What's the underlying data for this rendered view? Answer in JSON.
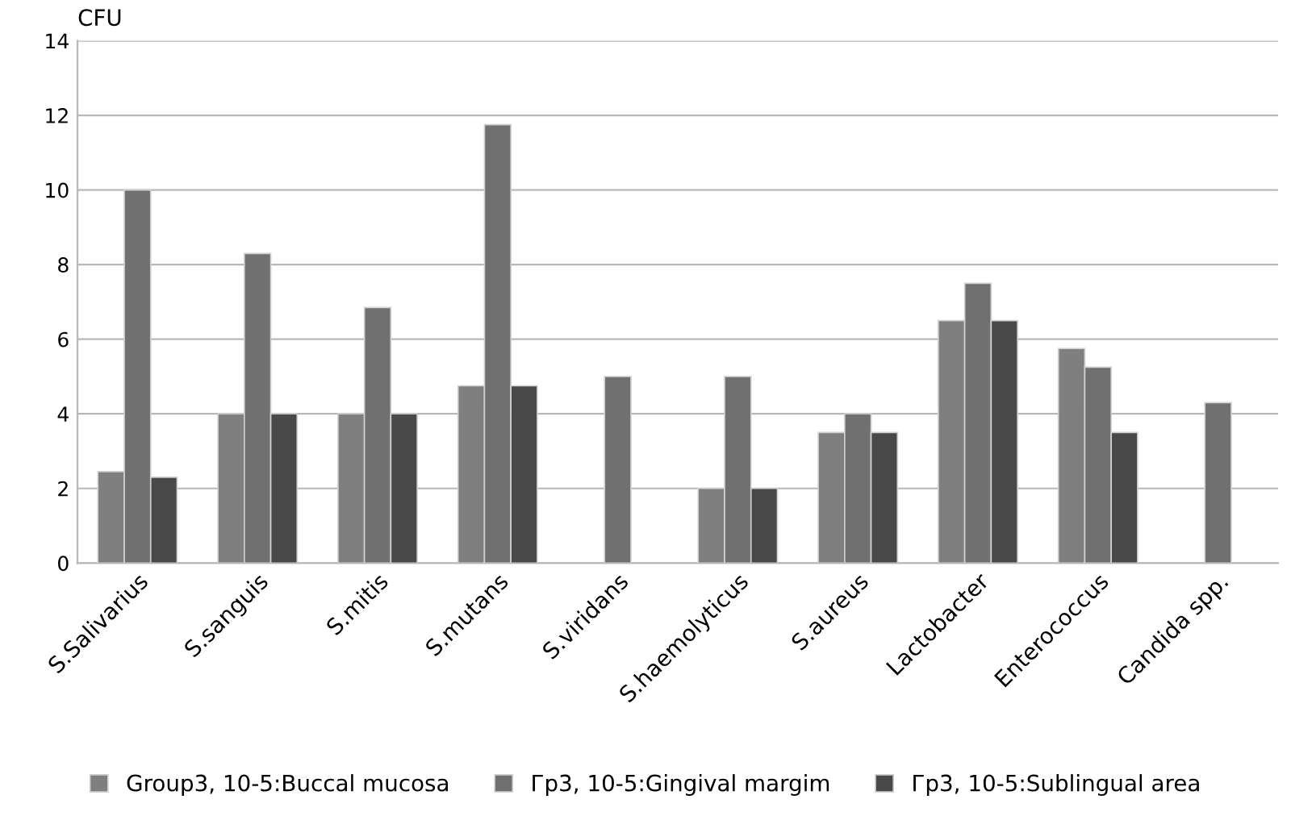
{
  "chart_data": {
    "type": "bar",
    "ylabel": "CFU",
    "categories": [
      "S.Salivarius",
      "S.sanguis",
      "S.mitis",
      "S.mutans",
      "S.viridans",
      "S.haemolyticus",
      "S.aureus",
      "Lactobacter",
      "Enterococcus",
      "Candida spp."
    ],
    "series": [
      {
        "name": "Group3, 10-5:Buccal mucosa",
        "color": "#7f7f7f",
        "values": [
          2.45,
          4,
          4,
          4.75,
          null,
          2,
          3.5,
          6.5,
          5.75,
          null
        ]
      },
      {
        "name": "Гр3, 10-5:Gingival margim",
        "color": "#707070",
        "values": [
          10,
          8.3,
          6.85,
          11.75,
          5,
          5,
          4,
          7.5,
          5.25,
          4.3
        ]
      },
      {
        "name": "Гр3, 10-5:Sublingual area",
        "color": "#484848",
        "values": [
          2.3,
          4,
          4,
          4.75,
          null,
          2,
          3.5,
          6.5,
          3.5,
          null
        ]
      }
    ],
    "ylim": [
      0,
      14
    ],
    "yticks": [
      0,
      2,
      4,
      6,
      8,
      10,
      12,
      14
    ],
    "grid": "y",
    "legend": "bottom"
  }
}
